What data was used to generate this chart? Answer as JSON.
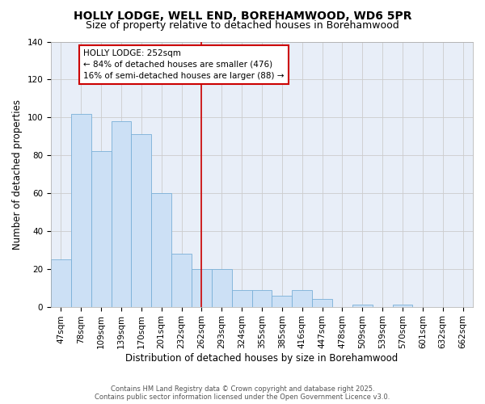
{
  "title": "HOLLY LODGE, WELL END, BOREHAMWOOD, WD6 5PR",
  "subtitle": "Size of property relative to detached houses in Borehamwood",
  "xlabel": "Distribution of detached houses by size in Borehamwood",
  "ylabel": "Number of detached properties",
  "categories": [
    "47sqm",
    "78sqm",
    "109sqm",
    "139sqm",
    "170sqm",
    "201sqm",
    "232sqm",
    "262sqm",
    "293sqm",
    "324sqm",
    "355sqm",
    "385sqm",
    "416sqm",
    "447sqm",
    "478sqm",
    "509sqm",
    "539sqm",
    "570sqm",
    "601sqm",
    "632sqm",
    "662sqm"
  ],
  "values": [
    25,
    102,
    82,
    98,
    91,
    60,
    28,
    20,
    20,
    9,
    9,
    6,
    9,
    4,
    0,
    1,
    0,
    1,
    0,
    0,
    0
  ],
  "bar_color": "#cce0f5",
  "bar_edge_color": "#7ab0d8",
  "bar_edge_width": 0.6,
  "vline_color": "#cc0000",
  "vline_x": 7.5,
  "annotation_text": "HOLLY LODGE: 252sqm\n← 84% of detached houses are smaller (476)\n16% of semi-detached houses are larger (88) →",
  "annotation_box_color": "#cc0000",
  "ylim": [
    0,
    140
  ],
  "yticks": [
    0,
    20,
    40,
    60,
    80,
    100,
    120,
    140
  ],
  "grid_color": "#cccccc",
  "plot_bg_color": "#e8eef8",
  "fig_bg_color": "#ffffff",
  "title_fontsize": 10,
  "subtitle_fontsize": 9,
  "xlabel_fontsize": 8.5,
  "ylabel_fontsize": 8.5,
  "tick_fontsize": 7.5,
  "ann_fontsize": 7.5,
  "footer_line1": "Contains HM Land Registry data © Crown copyright and database right 2025.",
  "footer_line2": "Contains public sector information licensed under the Open Government Licence v3.0."
}
